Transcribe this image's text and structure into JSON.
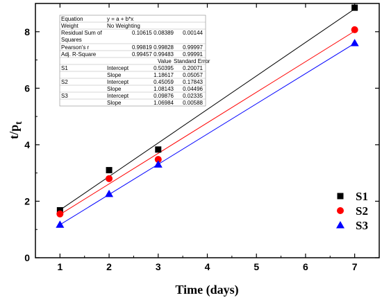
{
  "chart_data": {
    "type": "scatter",
    "xlabel": "Time (days)",
    "ylabel_main": "t/p",
    "ylabel_sub": "t",
    "xlim": [
      0.5,
      7.5
    ],
    "ylim": [
      0,
      9
    ],
    "xticks": [
      1,
      2,
      3,
      4,
      5,
      6,
      7
    ],
    "yticks": [
      0,
      2,
      4,
      6,
      8
    ],
    "grid": false,
    "legend_position": "bottom-right",
    "series": [
      {
        "name": "S1",
        "color": "#000000",
        "marker": "square",
        "x": [
          1,
          2,
          3,
          7
        ],
        "y": [
          1.68,
          3.1,
          3.83,
          8.85
        ],
        "fit": {
          "intercept": 0.50395,
          "slope": 1.18617
        }
      },
      {
        "name": "S2",
        "color": "#ff0000",
        "marker": "circle",
        "x": [
          1,
          2,
          3,
          7
        ],
        "y": [
          1.55,
          2.8,
          3.48,
          8.07
        ],
        "fit": {
          "intercept": 0.45059,
          "slope": 1.08143
        }
      },
      {
        "name": "S3",
        "color": "#0000ff",
        "marker": "triangle",
        "x": [
          1,
          2,
          3,
          7
        ],
        "y": [
          1.17,
          2.26,
          3.3,
          7.6
        ],
        "fit": {
          "intercept": 0.09876,
          "slope": 1.06984
        }
      }
    ],
    "stats_table": {
      "rows": [
        [
          "Equation",
          "",
          "y = a + b*x",
          ""
        ],
        [
          "Weight",
          "",
          "No Weighting",
          ""
        ],
        [
          "Residual Sum of Squares",
          "",
          "0.10615     0.08389",
          "0.00144"
        ],
        [
          "Pearson's r",
          "",
          "0.99819     0.99828",
          "0.99997"
        ],
        [
          "Adj. R-Square",
          "",
          "0.99457     0.99483",
          "0.99991"
        ],
        [
          "",
          "",
          "Value",
          "Standard Error"
        ],
        [
          "S1",
          "Intercept",
          "0.50395",
          "0.20071"
        ],
        [
          "",
          "Slope",
          "1.18617",
          "0.05057"
        ],
        [
          "S2",
          "Intercept",
          "0.45059",
          "0.17843"
        ],
        [
          "",
          "Slope",
          "1.08143",
          "0.04496"
        ],
        [
          "S3",
          "Intercept",
          "0.09876",
          "0.02335"
        ],
        [
          "",
          "Slope",
          "1.06984",
          "0.00588"
        ]
      ]
    }
  }
}
